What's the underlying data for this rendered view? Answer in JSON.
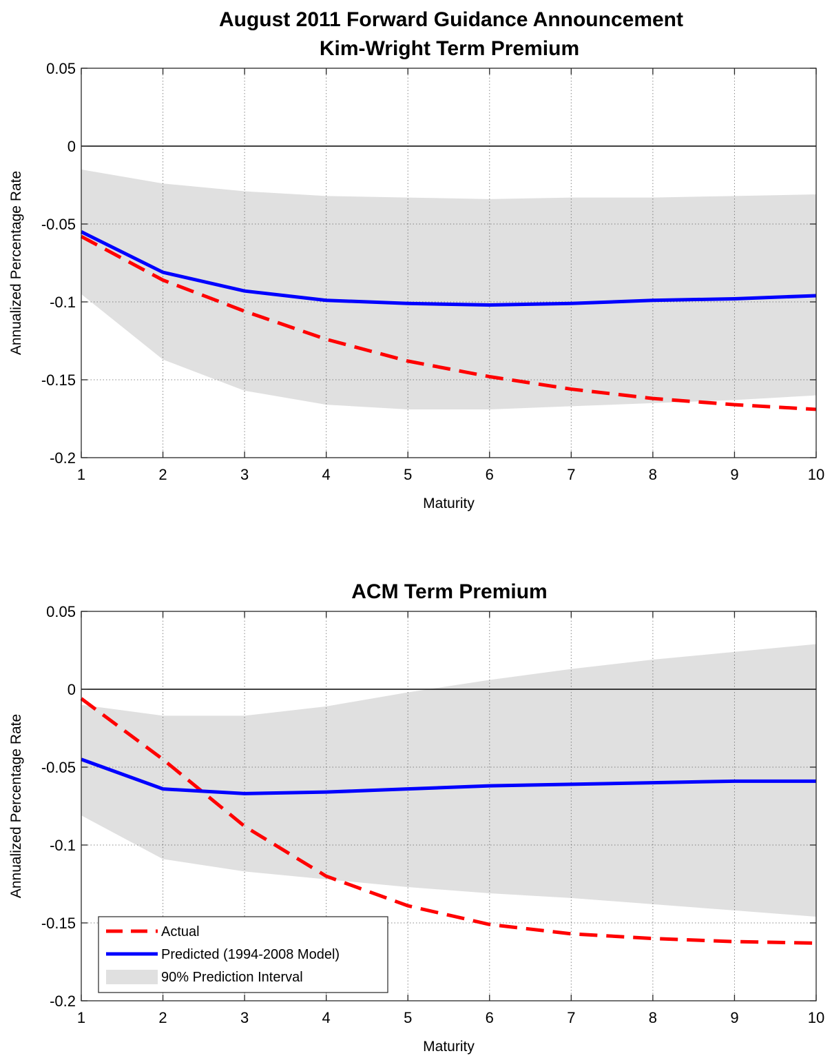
{
  "figure": {
    "title_line1": "August 2011 Forward Guidance Announcement"
  },
  "chart_data": [
    {
      "type": "line",
      "title": "Kim-Wright Term Premium",
      "xlabel": "Maturity",
      "ylabel": "Annualized Percentage Rate",
      "xlim": [
        1,
        10
      ],
      "ylim": [
        -0.2,
        0.05
      ],
      "xticks": [
        1,
        2,
        3,
        4,
        5,
        6,
        7,
        8,
        9,
        10
      ],
      "yticks": [
        0.05,
        0,
        -0.05,
        -0.1,
        -0.15,
        -0.2
      ],
      "ytick_labels": [
        "0.05",
        "0",
        "-0.05",
        "-0.1",
        "-0.15",
        "-0.2"
      ],
      "grid": true,
      "zero_line": true,
      "x": [
        1,
        2,
        3,
        4,
        5,
        6,
        7,
        8,
        9,
        10
      ],
      "series": [
        {
          "name": "Actual",
          "style": "dashed",
          "color": "#ff0000",
          "values": [
            -0.058,
            -0.086,
            -0.106,
            -0.124,
            -0.138,
            -0.148,
            -0.156,
            -0.162,
            -0.166,
            -0.169
          ]
        },
        {
          "name": "Predicted (1994-2008 Model)",
          "style": "solid",
          "color": "#0000ff",
          "values": [
            -0.055,
            -0.081,
            -0.093,
            -0.099,
            -0.101,
            -0.102,
            -0.101,
            -0.099,
            -0.098,
            -0.096
          ]
        }
      ],
      "band": {
        "name": "90% Prediction Interval",
        "color": "#e0e0e0",
        "upper": [
          -0.015,
          -0.024,
          -0.029,
          -0.032,
          -0.033,
          -0.034,
          -0.033,
          -0.033,
          -0.032,
          -0.031
        ],
        "lower": [
          -0.095,
          -0.137,
          -0.157,
          -0.166,
          -0.169,
          -0.169,
          -0.167,
          -0.165,
          -0.163,
          -0.16
        ]
      },
      "legend": null
    },
    {
      "type": "line",
      "title": "ACM Term Premium",
      "xlabel": "Maturity",
      "ylabel": "Annualized Percentage Rate",
      "xlim": [
        1,
        10
      ],
      "ylim": [
        -0.2,
        0.05
      ],
      "xticks": [
        1,
        2,
        3,
        4,
        5,
        6,
        7,
        8,
        9,
        10
      ],
      "yticks": [
        0.05,
        0,
        -0.05,
        -0.1,
        -0.15,
        -0.2
      ],
      "ytick_labels": [
        "0.05",
        "0",
        "-0.05",
        "-0.1",
        "-0.15",
        "-0.2"
      ],
      "grid": true,
      "zero_line": true,
      "x": [
        1,
        2,
        3,
        4,
        5,
        6,
        7,
        8,
        9,
        10
      ],
      "series": [
        {
          "name": "Actual",
          "style": "dashed",
          "color": "#ff0000",
          "values": [
            -0.006,
            -0.045,
            -0.088,
            -0.12,
            -0.139,
            -0.151,
            -0.157,
            -0.16,
            -0.162,
            -0.163
          ]
        },
        {
          "name": "Predicted (1994-2008 Model)",
          "style": "solid",
          "color": "#0000ff",
          "values": [
            -0.045,
            -0.064,
            -0.067,
            -0.066,
            -0.064,
            -0.062,
            -0.061,
            -0.06,
            -0.059,
            -0.059
          ]
        }
      ],
      "band": {
        "name": "90% Prediction Interval",
        "color": "#e0e0e0",
        "upper": [
          -0.01,
          -0.017,
          -0.017,
          -0.011,
          -0.002,
          0.006,
          0.013,
          0.019,
          0.024,
          0.029
        ],
        "lower": [
          -0.081,
          -0.109,
          -0.117,
          -0.122,
          -0.127,
          -0.131,
          -0.134,
          -0.138,
          -0.142,
          -0.146
        ]
      },
      "legend": {
        "location": "bottom-left",
        "entries": [
          "Actual",
          "Predicted (1994-2008 Model)",
          "90% Prediction Interval"
        ]
      }
    }
  ]
}
